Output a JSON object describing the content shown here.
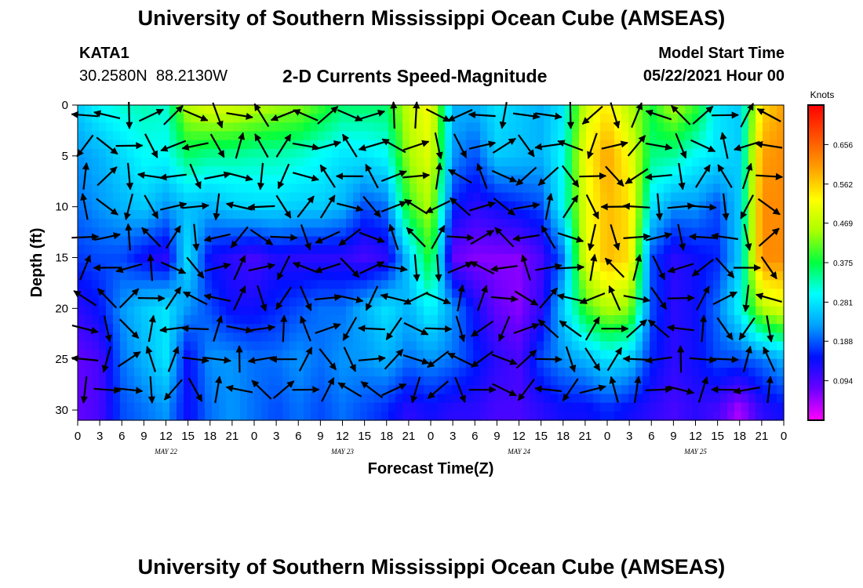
{
  "header": {
    "title": "University of Southern Mississippi Ocean Cube (AMSEAS)",
    "station_id": "KATA1",
    "coordinates": "30.2580N  88.2130W",
    "chart_title": "2-D Currents Speed-Magnitude",
    "model_start_label": "Model Start Time",
    "model_start_value": "05/22/2021 Hour 00"
  },
  "footer": {
    "title": "University of Southern Mississippi Ocean Cube (AMSEAS)"
  },
  "chart_data": {
    "type": "heatmap",
    "title": "2-D Currents Speed-Magnitude",
    "xlabel": "Forecast Time(Z)",
    "ylabel": "Depth (ft)",
    "x_ticks": [
      "0",
      "3",
      "6",
      "9",
      "12",
      "15",
      "18",
      "21",
      "0",
      "3",
      "6",
      "9",
      "12",
      "15",
      "18",
      "21",
      "0",
      "3",
      "6",
      "9",
      "12",
      "15",
      "18",
      "21",
      "0",
      "3",
      "6",
      "9",
      "12",
      "15",
      "18",
      "21",
      "0"
    ],
    "day_labels": [
      "MAY 22",
      "MAY 23",
      "MAY 24",
      "MAY 25"
    ],
    "y_ticks": [
      0,
      5,
      10,
      15,
      20,
      25,
      30
    ],
    "ylim": [
      0,
      31
    ],
    "y_inverted": true,
    "xlim_hours": [
      0,
      96
    ],
    "colorbar": {
      "unit": "Knots",
      "min": 0.0,
      "max": 0.75,
      "tick_values": [
        0.656,
        0.562,
        0.469,
        0.375,
        0.281,
        0.188,
        0.094
      ],
      "tick_labels": [
        "0.656",
        "0.562",
        "0.469",
        "0.375",
        "0.281",
        "0.188",
        "0.094"
      ]
    },
    "speed_knots": {
      "hours": [
        0,
        3,
        6,
        9,
        12,
        15,
        18,
        21,
        24,
        27,
        30,
        33,
        36,
        39,
        42,
        45,
        48,
        51,
        54,
        57,
        60,
        63,
        66,
        69,
        72,
        75,
        78,
        81,
        84,
        87,
        90,
        93,
        96
      ],
      "depths_ft": [
        0,
        5,
        10,
        15,
        20,
        25,
        30
      ],
      "values": [
        [
          0.26,
          0.3,
          0.32,
          0.33,
          0.32,
          0.47,
          0.5,
          0.49,
          0.47,
          0.45,
          0.44,
          0.4,
          0.36,
          0.36,
          0.36,
          0.48,
          0.52,
          0.24,
          0.24,
          0.28,
          0.26,
          0.24,
          0.28,
          0.48,
          0.54,
          0.46,
          0.38,
          0.46,
          0.4,
          0.28,
          0.26,
          0.55,
          0.6
        ],
        [
          0.22,
          0.24,
          0.27,
          0.3,
          0.3,
          0.36,
          0.34,
          0.34,
          0.33,
          0.33,
          0.32,
          0.3,
          0.28,
          0.28,
          0.3,
          0.45,
          0.5,
          0.22,
          0.18,
          0.26,
          0.25,
          0.24,
          0.3,
          0.52,
          0.6,
          0.52,
          0.35,
          0.34,
          0.3,
          0.28,
          0.26,
          0.6,
          0.62
        ],
        [
          0.2,
          0.22,
          0.24,
          0.26,
          0.22,
          0.25,
          0.24,
          0.26,
          0.27,
          0.27,
          0.26,
          0.26,
          0.24,
          0.18,
          0.2,
          0.4,
          0.46,
          0.16,
          0.12,
          0.14,
          0.16,
          0.18,
          0.3,
          0.5,
          0.58,
          0.55,
          0.28,
          0.22,
          0.22,
          0.18,
          0.26,
          0.62,
          0.62
        ],
        [
          0.17,
          0.18,
          0.18,
          0.14,
          0.12,
          0.28,
          0.14,
          0.12,
          0.1,
          0.13,
          0.12,
          0.12,
          0.12,
          0.1,
          0.12,
          0.26,
          0.4,
          0.08,
          0.06,
          0.06,
          0.06,
          0.1,
          0.2,
          0.5,
          0.58,
          0.55,
          0.18,
          0.12,
          0.14,
          0.16,
          0.26,
          0.62,
          0.62
        ],
        [
          0.12,
          0.15,
          0.22,
          0.26,
          0.28,
          0.22,
          0.18,
          0.14,
          0.14,
          0.16,
          0.18,
          0.2,
          0.2,
          0.24,
          0.28,
          0.24,
          0.3,
          0.22,
          0.14,
          0.08,
          0.06,
          0.12,
          0.26,
          0.4,
          0.46,
          0.44,
          0.18,
          0.12,
          0.14,
          0.2,
          0.3,
          0.46,
          0.5
        ],
        [
          0.08,
          0.1,
          0.2,
          0.24,
          0.28,
          0.14,
          0.22,
          0.22,
          0.2,
          0.2,
          0.22,
          0.2,
          0.22,
          0.22,
          0.24,
          0.2,
          0.22,
          0.2,
          0.16,
          0.12,
          0.1,
          0.18,
          0.22,
          0.24,
          0.28,
          0.26,
          0.16,
          0.12,
          0.14,
          0.18,
          0.18,
          0.2,
          0.24
        ],
        [
          0.08,
          0.1,
          0.18,
          0.2,
          0.22,
          0.14,
          0.2,
          0.22,
          0.2,
          0.18,
          0.2,
          0.18,
          0.2,
          0.18,
          0.16,
          0.12,
          0.14,
          0.12,
          0.12,
          0.1,
          0.1,
          0.12,
          0.14,
          0.14,
          0.16,
          0.14,
          0.12,
          0.1,
          0.12,
          0.1,
          0.04,
          0.12,
          0.14
        ]
      ]
    }
  },
  "colors": {
    "vector_arrow": "#000000",
    "colorbar_stops": [
      "#ff00ff",
      "#6a00ff",
      "#0010ff",
      "#00a0ff",
      "#00ffff",
      "#00ff40",
      "#aaff00",
      "#ffff00",
      "#ffa000",
      "#ff5000",
      "#ff0000"
    ]
  }
}
